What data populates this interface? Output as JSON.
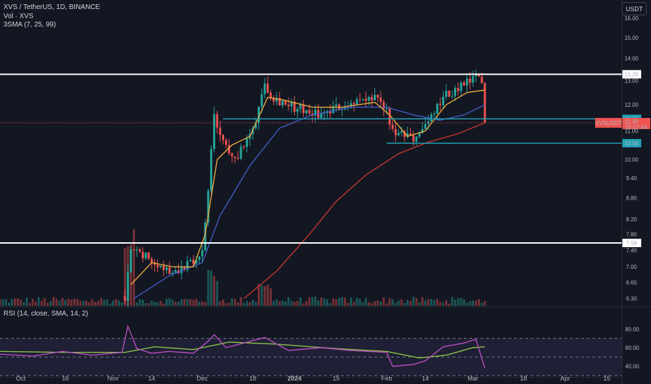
{
  "header": {
    "symbol_line": "XVS / TetherUS, 1D, BINANCE",
    "volume_line": "Vol · XVS",
    "sma_line": "3SMA (7, 25, 99)",
    "rsi_line": "RSI (14, close, SMA, 14, 2)",
    "currency": "USDT"
  },
  "colors": {
    "background": "#131722",
    "up": "#26a69a",
    "down": "#ef5350",
    "sma7": "#e9a93f",
    "sma25": "#3f5cc6",
    "sma99": "#c8372f",
    "rsi": "#b74fbf",
    "rsi_ma": "#8bc34a",
    "hline_white": "#ffffff",
    "hline_cyan": "#22a2b5"
  },
  "price_axis": {
    "ticks": [
      "16.00",
      "15.00",
      "14.00",
      "13.00",
      "12.00",
      "11.00",
      "10.00",
      "9.40",
      "8.80",
      "8.20",
      "7.80",
      "7.40",
      "7.00",
      "6.65",
      "6.30"
    ],
    "scale": "log"
  },
  "rsi_axis": {
    "ticks": [
      "80.00",
      "60.00",
      "40.00"
    ]
  },
  "x_axis": {
    "labels": [
      {
        "text": "Oct",
        "date": "2023-10-01",
        "bold": false
      },
      {
        "text": "16",
        "date": "2023-10-16",
        "bold": false
      },
      {
        "text": "Nov",
        "date": "2023-11-01",
        "bold": false
      },
      {
        "text": "14",
        "date": "2023-11-14",
        "bold": false
      },
      {
        "text": "Dec",
        "date": "2023-12-01",
        "bold": false
      },
      {
        "text": "18",
        "date": "2023-12-18",
        "bold": false
      },
      {
        "text": "2024",
        "date": "2024-01-01",
        "bold": true
      },
      {
        "text": "15",
        "date": "2024-01-15",
        "bold": false
      },
      {
        "text": "Feb",
        "date": "2024-02-01",
        "bold": false
      },
      {
        "text": "14",
        "date": "2024-02-14",
        "bold": false
      },
      {
        "text": "Mar",
        "date": "2024-03-01",
        "bold": false
      },
      {
        "text": "18",
        "date": "2024-03-18",
        "bold": false
      },
      {
        "text": "Apr",
        "date": "2024-04-01",
        "bold": false
      },
      {
        "text": "15",
        "date": "2024-04-15",
        "bold": false
      }
    ]
  },
  "horizontal_lines": [
    {
      "price": 13.28,
      "color": "white",
      "start": "2023-09-24",
      "label": "13.28"
    },
    {
      "price": 7.58,
      "color": "white",
      "start": "2023-09-24",
      "label": "7.58"
    },
    {
      "price": 11.45,
      "color": "cyan",
      "start": "2023-12-08",
      "label": "11.45"
    },
    {
      "price": 10.56,
      "color": "cyan",
      "start": "2024-02-01",
      "label": "10.56"
    }
  ],
  "current": {
    "symbol": "XVSUSDT",
    "price": "11.30",
    "countdown": "02:57:44"
  },
  "chart_data": {
    "type": "candlestick",
    "title": "XVS / TetherUS, 1D, BINANCE",
    "x_range": [
      "2023-09-24",
      "2024-04-20"
    ],
    "y_range": [
      6.15,
      17.0
    ],
    "y_scale": "log",
    "key_points": [
      {
        "date": "2023-11-05",
        "close": 6.35
      },
      {
        "date": "2023-11-07",
        "close": 7.35
      },
      {
        "date": "2023-11-12",
        "close": 7.3
      },
      {
        "date": "2023-11-20",
        "close": 6.9
      },
      {
        "date": "2023-11-27",
        "close": 7.05
      },
      {
        "date": "2023-12-01",
        "close": 7.3
      },
      {
        "date": "2023-12-03",
        "close": 9.0
      },
      {
        "date": "2023-12-05",
        "close": 11.5
      },
      {
        "date": "2023-12-08",
        "close": 10.5
      },
      {
        "date": "2023-12-13",
        "close": 10.1
      },
      {
        "date": "2023-12-18",
        "close": 11.0
      },
      {
        "date": "2023-12-22",
        "close": 12.9
      },
      {
        "date": "2023-12-25",
        "close": 12.3
      },
      {
        "date": "2024-01-01",
        "close": 11.9
      },
      {
        "date": "2024-01-10",
        "close": 11.6
      },
      {
        "date": "2024-01-20",
        "close": 12.1
      },
      {
        "date": "2024-01-28",
        "close": 12.2
      },
      {
        "date": "2024-02-01",
        "close": 11.8
      },
      {
        "date": "2024-02-03",
        "close": 10.9
      },
      {
        "date": "2024-02-10",
        "close": 10.7
      },
      {
        "date": "2024-02-15",
        "close": 11.3
      },
      {
        "date": "2024-02-20",
        "close": 12.3
      },
      {
        "date": "2024-02-27",
        "close": 12.8
      },
      {
        "date": "2024-03-02",
        "close": 13.1
      },
      {
        "date": "2024-03-04",
        "close": 12.9
      },
      {
        "date": "2024-03-05",
        "close": 11.3
      }
    ],
    "sma7_points": [
      {
        "date": "2023-11-07",
        "y": 6.6
      },
      {
        "date": "2023-11-14",
        "y": 7.1
      },
      {
        "date": "2023-11-21",
        "y": 7.0
      },
      {
        "date": "2023-11-28",
        "y": 7.0
      },
      {
        "date": "2023-12-02",
        "y": 7.8
      },
      {
        "date": "2023-12-06",
        "y": 10.0
      },
      {
        "date": "2023-12-11",
        "y": 10.5
      },
      {
        "date": "2023-12-17",
        "y": 10.8
      },
      {
        "date": "2023-12-23",
        "y": 12.3
      },
      {
        "date": "2023-12-28",
        "y": 12.2
      },
      {
        "date": "2024-01-07",
        "y": 11.9
      },
      {
        "date": "2024-01-17",
        "y": 11.9
      },
      {
        "date": "2024-01-28",
        "y": 12.1
      },
      {
        "date": "2024-02-02",
        "y": 11.6
      },
      {
        "date": "2024-02-08",
        "y": 10.8
      },
      {
        "date": "2024-02-14",
        "y": 11.0
      },
      {
        "date": "2024-02-21",
        "y": 12.0
      },
      {
        "date": "2024-02-28",
        "y": 12.5
      },
      {
        "date": "2024-03-05",
        "y": 12.6
      }
    ],
    "sma25_points": [
      {
        "date": "2023-11-08",
        "y": 6.3
      },
      {
        "date": "2023-11-20",
        "y": 6.8
      },
      {
        "date": "2023-12-01",
        "y": 7.1
      },
      {
        "date": "2023-12-07",
        "y": 8.3
      },
      {
        "date": "2023-12-17",
        "y": 9.8
      },
      {
        "date": "2023-12-27",
        "y": 11.1
      },
      {
        "date": "2024-01-07",
        "y": 11.6
      },
      {
        "date": "2024-01-20",
        "y": 11.9
      },
      {
        "date": "2024-02-01",
        "y": 11.9
      },
      {
        "date": "2024-02-10",
        "y": 11.6
      },
      {
        "date": "2024-02-19",
        "y": 11.4
      },
      {
        "date": "2024-02-27",
        "y": 11.6
      },
      {
        "date": "2024-03-05",
        "y": 12.0
      }
    ],
    "sma99_points": [
      {
        "date": "2023-12-15",
        "y": 6.3
      },
      {
        "date": "2023-12-26",
        "y": 6.9
      },
      {
        "date": "2024-01-06",
        "y": 7.8
      },
      {
        "date": "2024-01-15",
        "y": 8.7
      },
      {
        "date": "2024-01-25",
        "y": 9.5
      },
      {
        "date": "2024-02-05",
        "y": 10.2
      },
      {
        "date": "2024-02-15",
        "y": 10.6
      },
      {
        "date": "2024-02-25",
        "y": 10.9
      },
      {
        "date": "2024-03-05",
        "y": 11.3
      }
    ],
    "rsi_range": [
      30,
      90
    ],
    "rsi_points": [
      {
        "date": "2023-09-24",
        "y": 53
      },
      {
        "date": "2023-10-05",
        "y": 51
      },
      {
        "date": "2023-10-15",
        "y": 56
      },
      {
        "date": "2023-10-25",
        "y": 52
      },
      {
        "date": "2023-11-04",
        "y": 55
      },
      {
        "date": "2023-11-06",
        "y": 83
      },
      {
        "date": "2023-11-09",
        "y": 59
      },
      {
        "date": "2023-11-14",
        "y": 54
      },
      {
        "date": "2023-11-20",
        "y": 56
      },
      {
        "date": "2023-11-28",
        "y": 54
      },
      {
        "date": "2023-12-03",
        "y": 67
      },
      {
        "date": "2023-12-05",
        "y": 74
      },
      {
        "date": "2023-12-09",
        "y": 60
      },
      {
        "date": "2023-12-15",
        "y": 65
      },
      {
        "date": "2023-12-22",
        "y": 71
      },
      {
        "date": "2023-12-30",
        "y": 57
      },
      {
        "date": "2024-01-10",
        "y": 60
      },
      {
        "date": "2024-01-20",
        "y": 57
      },
      {
        "date": "2024-02-01",
        "y": 55
      },
      {
        "date": "2024-02-03",
        "y": 40
      },
      {
        "date": "2024-02-10",
        "y": 42
      },
      {
        "date": "2024-02-14",
        "y": 46
      },
      {
        "date": "2024-02-20",
        "y": 61
      },
      {
        "date": "2024-02-27",
        "y": 65
      },
      {
        "date": "2024-03-02",
        "y": 69
      },
      {
        "date": "2024-03-05",
        "y": 38
      }
    ],
    "rsi_ma_points": [
      {
        "date": "2023-09-24",
        "y": 56
      },
      {
        "date": "2023-10-15",
        "y": 55
      },
      {
        "date": "2023-11-05",
        "y": 55
      },
      {
        "date": "2023-11-15",
        "y": 61
      },
      {
        "date": "2023-11-28",
        "y": 58
      },
      {
        "date": "2023-12-10",
        "y": 66
      },
      {
        "date": "2023-12-25",
        "y": 64
      },
      {
        "date": "2024-01-15",
        "y": 59
      },
      {
        "date": "2024-02-01",
        "y": 56
      },
      {
        "date": "2024-02-12",
        "y": 49
      },
      {
        "date": "2024-02-21",
        "y": 52
      },
      {
        "date": "2024-03-01",
        "y": 60
      },
      {
        "date": "2024-03-05",
        "y": 61
      }
    ],
    "rsi_levels": [
      70,
      50,
      30
    ],
    "rsi_ticks": [
      80,
      60,
      40
    ]
  }
}
